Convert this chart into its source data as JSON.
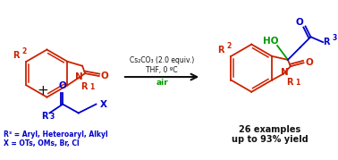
{
  "bg_color": "#ffffff",
  "red": "#cc2200",
  "blue": "#0000cc",
  "green": "#009900",
  "black": "#111111",
  "reagent1": "Cs₂CO₃ (2.0 equiv.)",
  "reagent2": "THF, 0 ºC",
  "reagent3": "air",
  "result1": "26 examples",
  "result2": "up to 93% yield",
  "legend1": "R³ = Aryl, Heteroaryl, Alkyl",
  "legend2": "X = OTs, OMs, Br, Cl"
}
